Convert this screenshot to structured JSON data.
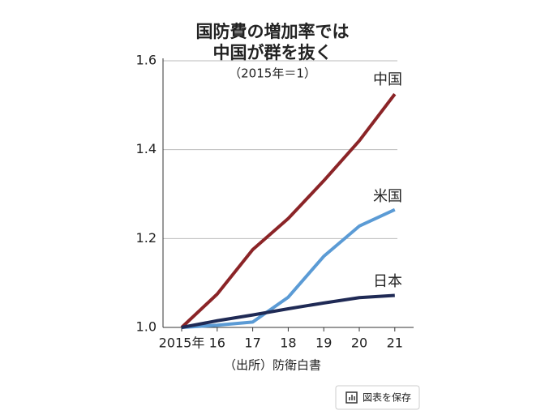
{
  "chart_data": {
    "type": "line",
    "title": [
      "国防費の増加率では",
      "中国が群を抜く"
    ],
    "subtitle": "（2015年＝1）",
    "source": "（出所）防衛白書",
    "categories": [
      "2015年",
      "16",
      "17",
      "18",
      "19",
      "20",
      "21"
    ],
    "series": [
      {
        "name": "中国",
        "color": "#8b2427",
        "values": [
          1.0,
          1.075,
          1.175,
          1.245,
          1.33,
          1.42,
          1.525
        ]
      },
      {
        "name": "米国",
        "color": "#5b9bd5",
        "values": [
          1.0,
          1.005,
          1.012,
          1.068,
          1.16,
          1.228,
          1.265
        ]
      },
      {
        "name": "日本",
        "color": "#1f2a55",
        "values": [
          1.0,
          1.015,
          1.028,
          1.042,
          1.055,
          1.067,
          1.072
        ]
      }
    ],
    "ylim": [
      1.0,
      1.6
    ],
    "yticks": [
      {
        "value": 1.0,
        "label": "1.0"
      },
      {
        "value": 1.2,
        "label": "1.2"
      },
      {
        "value": 1.4,
        "label": "1.4"
      },
      {
        "value": 1.6,
        "label": "1.6"
      }
    ],
    "grid": true
  },
  "button": "図表を保存"
}
